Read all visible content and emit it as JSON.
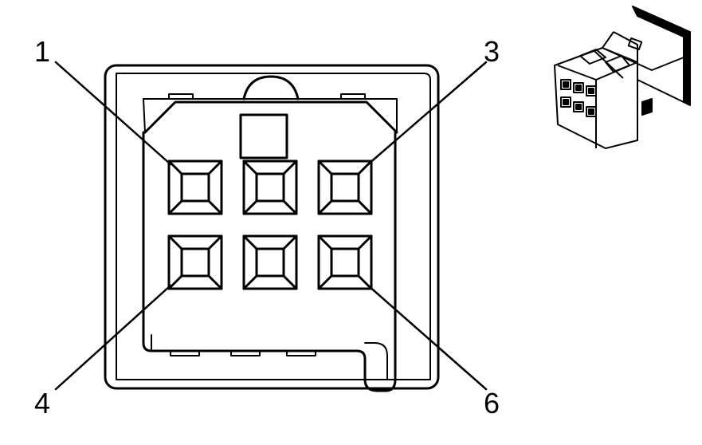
{
  "connector": {
    "pin_labels": [
      {
        "pin": "1",
        "label": "1"
      },
      {
        "pin": "3",
        "label": "3"
      },
      {
        "pin": "4",
        "label": "4"
      },
      {
        "pin": "6",
        "label": "6"
      }
    ],
    "cavity_count": 6,
    "stroke_color": "#000000",
    "background_color": "#ffffff"
  }
}
